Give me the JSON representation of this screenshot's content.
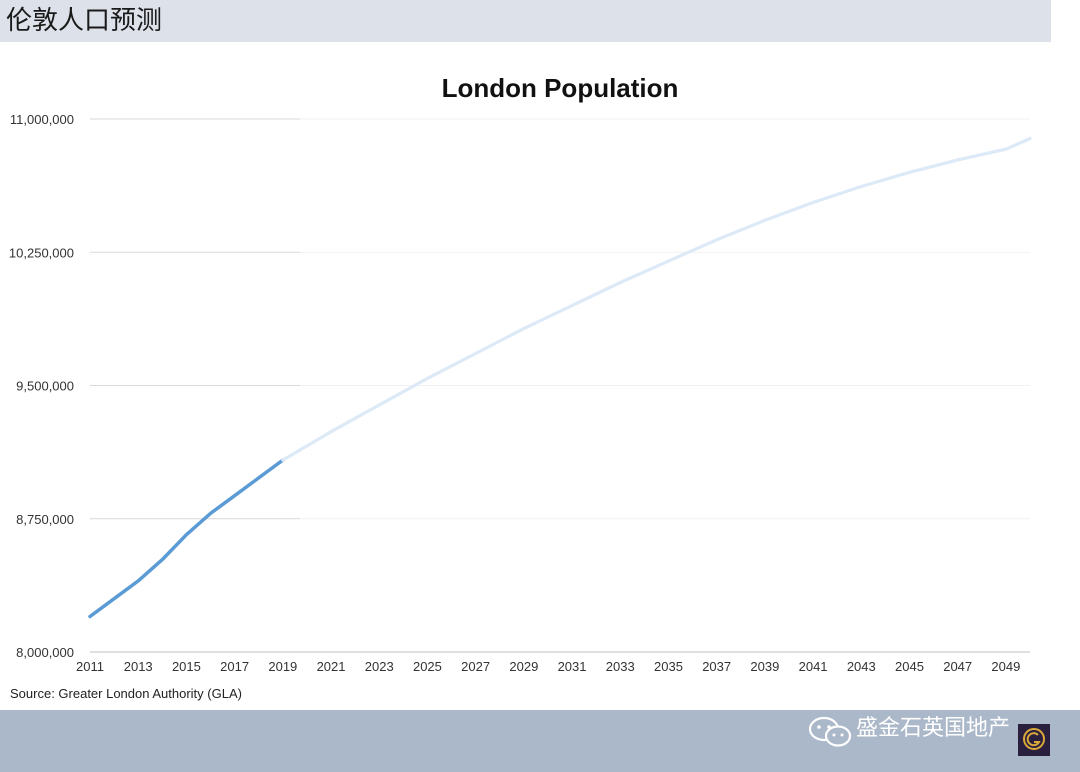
{
  "header": {
    "title": "伦敦人口预测"
  },
  "footer": {
    "brand": "盛金石英国地产"
  },
  "source": "Source: Greater London Authority (GLA)",
  "colors": {
    "actual": "#5b9bd5",
    "projected": "#dce9f6",
    "header_bg": "#dde2ea",
    "footer_bg": "#abb8c9",
    "logo_bg": "#2a1f3d",
    "logo_gold": "#d9a93a"
  },
  "icons": {
    "wechat": "wechat-icon",
    "logo": "gs-logo-icon"
  },
  "chart_data": {
    "type": "line",
    "title": "London Population",
    "xlabel": "",
    "ylabel": "",
    "ylim": [
      8000000,
      11000000
    ],
    "xlim": [
      2011,
      2050
    ],
    "yticks": [
      8000000,
      8750000,
      9500000,
      10250000,
      11000000
    ],
    "ytick_labels": [
      "8,000,000",
      "8,750,000",
      "9,500,000",
      "10,250,000",
      "11,000,000"
    ],
    "xtick_labels": [
      "2011",
      "2013",
      "2015",
      "2017",
      "2019",
      "2021",
      "2023",
      "2025",
      "2027",
      "2029",
      "2031",
      "2033",
      "2035",
      "2037",
      "2039",
      "2041",
      "2043",
      "2045",
      "2047",
      "2049"
    ],
    "grid": "horizontal",
    "series": [
      {
        "style": "actual",
        "x": [
          2011,
          2012,
          2013,
          2014,
          2015,
          2016,
          2017,
          2018,
          2019
        ],
        "values": [
          8200000,
          8300000,
          8400000,
          8520000,
          8660000,
          8780000,
          8880000,
          8980000,
          9080000
        ]
      },
      {
        "style": "projected",
        "x": [
          2019,
          2021,
          2023,
          2025,
          2027,
          2029,
          2031,
          2033,
          2035,
          2037,
          2039,
          2041,
          2043,
          2045,
          2047,
          2049,
          2050
        ],
        "values": [
          9080000,
          9240000,
          9390000,
          9540000,
          9680000,
          9820000,
          9950000,
          10080000,
          10200000,
          10320000,
          10430000,
          10530000,
          10620000,
          10700000,
          10770000,
          10830000,
          10890000
        ]
      }
    ]
  }
}
